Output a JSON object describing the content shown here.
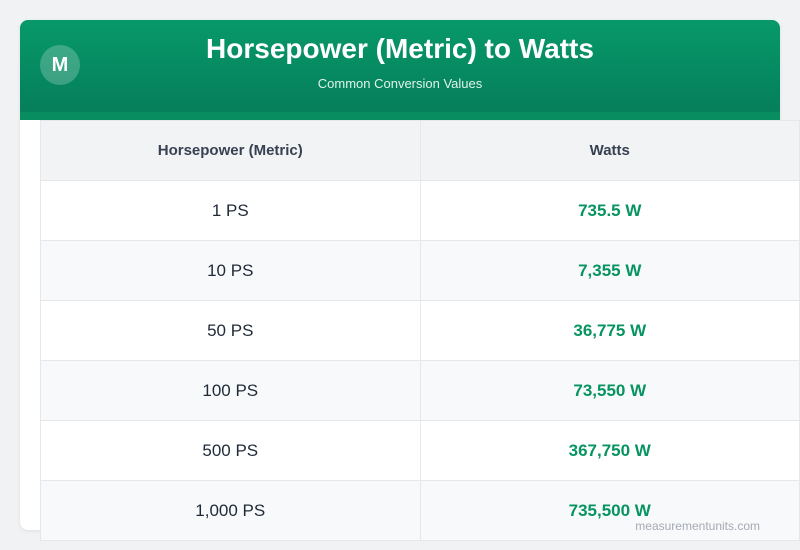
{
  "header": {
    "logo": "M",
    "title": "Horsepower (Metric) to Watts",
    "subtitle": "Common Conversion Values"
  },
  "table": {
    "columns": [
      "Horsepower (Metric)",
      "Watts"
    ],
    "rows": [
      [
        "1 PS",
        "735.5 W"
      ],
      [
        "10 PS",
        "7,355 W"
      ],
      [
        "50 PS",
        "36,775 W"
      ],
      [
        "100 PS",
        "73,550 W"
      ],
      [
        "500 PS",
        "367,750 W"
      ],
      [
        "1,000 PS",
        "735,500 W"
      ]
    ]
  },
  "watermark": "measurementunits.com",
  "colors": {
    "brand": "#07996a",
    "value": "#079461"
  }
}
